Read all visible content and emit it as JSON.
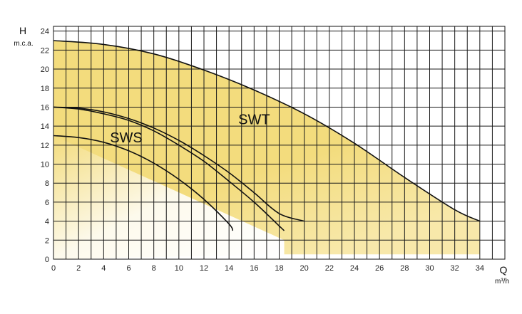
{
  "chart_data": {
    "type": "line",
    "y_label": "H",
    "y_unit": "m.c.a.",
    "x_label": "Q",
    "x_unit": "m³/h",
    "xlim": [
      0,
      36
    ],
    "ylim": [
      0,
      24.5
    ],
    "x_ticks": [
      "0",
      "2",
      "4",
      "6",
      "8",
      "10",
      "12",
      "14",
      "16",
      "18",
      "20",
      "22",
      "24",
      "26",
      "28",
      "30",
      "32",
      "34"
    ],
    "y_ticks": [
      "0",
      "2",
      "4",
      "6",
      "8",
      "10",
      "12",
      "14",
      "16",
      "18",
      "20",
      "22",
      "24"
    ],
    "grid": true,
    "colors": {
      "area": "#f3dc7d",
      "curve": "#111111",
      "grid": "#1a1a1a"
    },
    "areas": [
      {
        "name": "SWT",
        "label_at": [
          16,
          14.2
        ],
        "boundary": [
          [
            0,
            23
          ],
          [
            4,
            22.6
          ],
          [
            8,
            21.6
          ],
          [
            12,
            19.9
          ],
          [
            16,
            17.8
          ],
          [
            20,
            15.3
          ],
          [
            24,
            12.2
          ],
          [
            28,
            8.6
          ],
          [
            32,
            5.2
          ],
          [
            34,
            4
          ],
          [
            34,
            0.5
          ],
          [
            29,
            0.5
          ],
          [
            18.4,
            0.5
          ]
        ]
      },
      {
        "name": "SWS",
        "label_at": [
          5.8,
          12.3
        ],
        "boundary": []
      }
    ],
    "series": [
      {
        "x": [
          0,
          2,
          4,
          6,
          8,
          10,
          12,
          14,
          16,
          18,
          20
        ],
        "y": [
          16,
          15.9,
          15.5,
          14.8,
          13.8,
          12.5,
          10.9,
          9.1,
          7,
          4.8,
          4
        ]
      },
      {
        "x": [
          0,
          2,
          4,
          6,
          8,
          10,
          12,
          14,
          16,
          18,
          18.4
        ],
        "y": [
          16,
          15.8,
          15.3,
          14.6,
          13.5,
          12,
          10.3,
          8.2,
          6,
          3.5,
          3
        ]
      },
      {
        "x": [
          0,
          2,
          4,
          6,
          8,
          10,
          12,
          14,
          14.3
        ],
        "y": [
          13,
          12.8,
          12.3,
          11.4,
          10.1,
          8.4,
          6.3,
          3.7,
          3
        ]
      },
      {
        "x": [
          0,
          4,
          8,
          12,
          16,
          20,
          24,
          28,
          32,
          34
        ],
        "y": [
          23,
          22.6,
          21.6,
          19.9,
          17.8,
          15.3,
          12.2,
          8.6,
          5.2,
          4
        ]
      }
    ]
  }
}
